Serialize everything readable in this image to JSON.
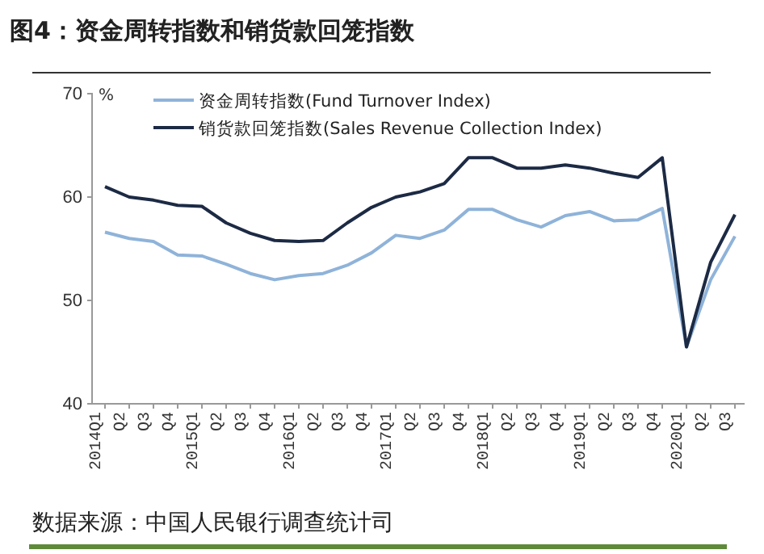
{
  "chart_data": {
    "type": "line",
    "title": "图4：资金周转指数和销货款回笼指数",
    "ylabel": "%",
    "categories": [
      "2014Q1",
      "Q2",
      "Q3",
      "Q4",
      "2015Q1",
      "Q2",
      "Q3",
      "Q4",
      "2016Q1",
      "Q2",
      "Q3",
      "Q4",
      "2017Q1",
      "Q2",
      "Q3",
      "Q4",
      "2018Q1",
      "Q2",
      "Q3",
      "Q4",
      "2019Q1",
      "Q2",
      "Q3",
      "Q4",
      "2020Q1",
      "Q2",
      "Q3"
    ],
    "series": [
      {
        "name": "资金周转指数(Fund Turnover Index)",
        "color": "#8fb3d9",
        "values": [
          56.6,
          56,
          55.7,
          54.4,
          54.3,
          53.5,
          52.6,
          52,
          52.4,
          52.6,
          53.4,
          54.6,
          56.3,
          56,
          56.8,
          58.8,
          58.8,
          57.8,
          57.1,
          58.2,
          58.6,
          57.7,
          57.8,
          58.9,
          45.5,
          52,
          56.2
        ]
      },
      {
        "name": "销货款回笼指数(Sales Revenue Collection Index)",
        "color": "#1c2a44",
        "values": [
          61,
          60,
          59.7,
          59.2,
          59.1,
          57.5,
          56.5,
          55.8,
          55.7,
          55.8,
          57.5,
          59,
          60,
          60.5,
          61.3,
          63.8,
          63.8,
          62.8,
          62.8,
          63.1,
          62.8,
          62.3,
          61.9,
          63.8,
          45.5,
          53.7,
          58.3
        ]
      }
    ],
    "ylim": [
      40,
      70
    ],
    "yticks": [
      40,
      50,
      60,
      70
    ],
    "grid": false,
    "legend": "top left",
    "marker": "none",
    "line_style": "solid",
    "annotations": [
      "数据来源：中国人民银行调查统计司"
    ]
  }
}
